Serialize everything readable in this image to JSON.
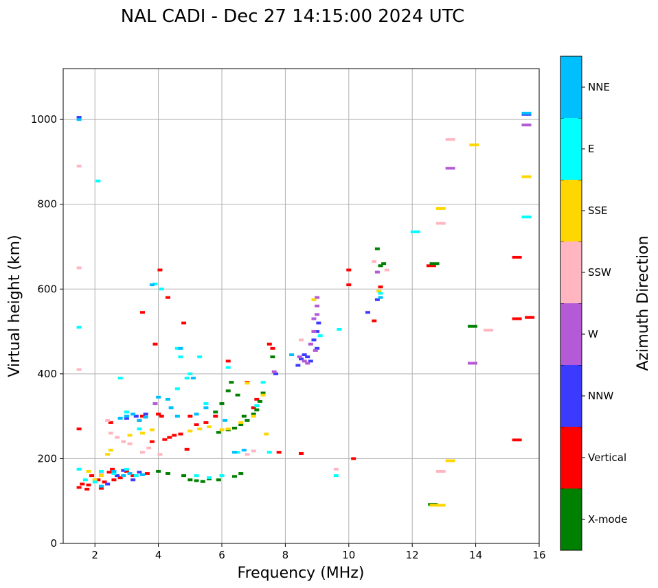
{
  "chart_data": {
    "type": "scatter",
    "title": "NAL CADI - Dec 27 14:15:00 2024 UTC",
    "xlabel": "Frequency (MHz)",
    "ylabel": "Virtual height (km)",
    "xlim": [
      1,
      16
    ],
    "ylim": [
      0,
      1120
    ],
    "xticks": [
      2,
      4,
      6,
      8,
      10,
      12,
      14,
      16
    ],
    "yticks": [
      0,
      200,
      400,
      600,
      800,
      1000
    ],
    "grid": true,
    "colorbar": {
      "label": "Azimuth Direction",
      "categories": [
        {
          "name": "X-mode",
          "color": "#008000"
        },
        {
          "name": "Vertical",
          "color": "#ff0000"
        },
        {
          "name": "NNW",
          "color": "#3b3bff"
        },
        {
          "name": "W",
          "color": "#b45ad6"
        },
        {
          "name": "SSW",
          "color": "#ffb6c1"
        },
        {
          "name": "SSE",
          "color": "#ffd700"
        },
        {
          "name": "E",
          "color": "#00ffff"
        },
        {
          "name": "NNE",
          "color": "#00bfff"
        }
      ]
    },
    "series": [
      {
        "name": "Vertical",
        "points": [
          [
            1.5,
            132
          ],
          [
            1.6,
            140
          ],
          [
            1.75,
            128
          ],
          [
            1.9,
            160
          ],
          [
            2.1,
            150
          ],
          [
            2.3,
            145
          ],
          [
            2.45,
            168
          ],
          [
            2.5,
            285
          ],
          [
            2.6,
            150
          ],
          [
            2.8,
            155
          ],
          [
            3.0,
            170
          ],
          [
            3.2,
            160
          ],
          [
            3.5,
            300
          ],
          [
            3.65,
            165
          ],
          [
            3.8,
            240
          ],
          [
            4.0,
            305
          ],
          [
            4.1,
            300
          ],
          [
            4.2,
            245
          ],
          [
            4.35,
            250
          ],
          [
            4.5,
            255
          ],
          [
            4.7,
            258
          ],
          [
            4.8,
            520
          ],
          [
            4.9,
            222
          ],
          [
            5.0,
            300
          ],
          [
            5.2,
            280
          ],
          [
            5.5,
            285
          ],
          [
            5.8,
            300
          ],
          [
            6.2,
            430
          ],
          [
            6.8,
            380
          ],
          [
            7.0,
            320
          ],
          [
            7.5,
            470
          ],
          [
            7.6,
            460
          ],
          [
            7.8,
            215
          ],
          [
            8.5,
            212
          ],
          [
            10.0,
            645
          ],
          [
            10.0,
            610
          ],
          [
            10.15,
            200
          ],
          [
            10.8,
            525
          ],
          [
            11.0,
            605
          ],
          [
            12.6,
            655
          ],
          [
            3.5,
            545
          ],
          [
            3.9,
            470
          ],
          [
            4.05,
            645
          ],
          [
            4.3,
            580
          ],
          [
            1.5,
            270
          ],
          [
            15.3,
            675
          ],
          [
            15.3,
            530
          ],
          [
            15.7,
            533
          ],
          [
            15.3,
            244
          ],
          [
            2.2,
            130
          ],
          [
            2.55,
            175
          ],
          [
            3.4,
            290
          ],
          [
            1.8,
            138
          ],
          [
            7.1,
            340
          ]
        ]
      },
      {
        "name": "X-mode",
        "points": [
          [
            4.8,
            160
          ],
          [
            5.0,
            150
          ],
          [
            5.2,
            148
          ],
          [
            5.4,
            146
          ],
          [
            5.6,
            152
          ],
          [
            5.9,
            150
          ],
          [
            6.4,
            158
          ],
          [
            6.6,
            165
          ],
          [
            6.2,
            268
          ],
          [
            6.4,
            272
          ],
          [
            6.6,
            280
          ],
          [
            6.8,
            290
          ],
          [
            7.0,
            305
          ],
          [
            7.1,
            315
          ],
          [
            7.2,
            335
          ],
          [
            7.3,
            355
          ],
          [
            5.8,
            310
          ],
          [
            6.0,
            330
          ],
          [
            6.2,
            360
          ],
          [
            6.3,
            380
          ],
          [
            6.5,
            350
          ],
          [
            4.0,
            170
          ],
          [
            4.3,
            165
          ],
          [
            10.9,
            695
          ],
          [
            11.0,
            655
          ],
          [
            11.1,
            660
          ],
          [
            13.9,
            512
          ],
          [
            12.65,
            92
          ],
          [
            12.7,
            660
          ],
          [
            5.9,
            262
          ],
          [
            6.7,
            300
          ],
          [
            7.6,
            440
          ]
        ]
      },
      {
        "name": "NNW",
        "points": [
          [
            1.5,
            1005
          ],
          [
            3.0,
            295
          ],
          [
            3.3,
            300
          ],
          [
            3.6,
            305
          ],
          [
            2.7,
            160
          ],
          [
            2.9,
            172
          ],
          [
            3.4,
            168
          ],
          [
            8.4,
            420
          ],
          [
            8.5,
            435
          ],
          [
            8.6,
            445
          ],
          [
            8.8,
            430
          ],
          [
            8.9,
            480
          ],
          [
            9.0,
            500
          ],
          [
            9.0,
            460
          ],
          [
            8.7,
            440
          ],
          [
            10.6,
            545
          ],
          [
            10.9,
            575
          ],
          [
            15.6,
            1012
          ],
          [
            2.4,
            140
          ],
          [
            7.7,
            400
          ],
          [
            9.05,
            520
          ],
          [
            3.2,
            150
          ]
        ]
      },
      {
        "name": "W",
        "points": [
          [
            8.45,
            440
          ],
          [
            8.6,
            430
          ],
          [
            8.7,
            425
          ],
          [
            8.9,
            500
          ],
          [
            8.9,
            530
          ],
          [
            9.0,
            580
          ],
          [
            9.0,
            560
          ],
          [
            9.0,
            540
          ],
          [
            8.8,
            470
          ],
          [
            7.65,
            405
          ],
          [
            13.2,
            885
          ],
          [
            13.9,
            425
          ],
          [
            15.6,
            987
          ],
          [
            10.9,
            640
          ],
          [
            3.9,
            330
          ],
          [
            8.95,
            455
          ]
        ]
      },
      {
        "name": "SSW",
        "points": [
          [
            2.4,
            290
          ],
          [
            2.5,
            260
          ],
          [
            2.7,
            250
          ],
          [
            2.9,
            240
          ],
          [
            3.1,
            235
          ],
          [
            3.5,
            215
          ],
          [
            3.7,
            225
          ],
          [
            4.05,
            210
          ],
          [
            2.2,
            165
          ],
          [
            7.0,
            218
          ],
          [
            8.5,
            480
          ],
          [
            10.8,
            665
          ],
          [
            11.2,
            645
          ],
          [
            12.9,
            755
          ],
          [
            12.9,
            170
          ],
          [
            14.4,
            503
          ],
          [
            13.2,
            953
          ],
          [
            9.6,
            175
          ],
          [
            6.8,
            210
          ],
          [
            1.5,
            890
          ],
          [
            1.5,
            650
          ],
          [
            1.5,
            410
          ]
        ]
      },
      {
        "name": "SSE",
        "points": [
          [
            2.0,
            150
          ],
          [
            2.2,
            160
          ],
          [
            2.4,
            210
          ],
          [
            2.5,
            220
          ],
          [
            3.1,
            255
          ],
          [
            3.5,
            260
          ],
          [
            3.8,
            268
          ],
          [
            5.0,
            265
          ],
          [
            5.3,
            270
          ],
          [
            5.6,
            275
          ],
          [
            6.0,
            268
          ],
          [
            6.2,
            270
          ],
          [
            6.6,
            285
          ],
          [
            7.0,
            300
          ],
          [
            7.3,
            350
          ],
          [
            8.9,
            575
          ],
          [
            10.95,
            595
          ],
          [
            12.9,
            790
          ],
          [
            13.95,
            940
          ],
          [
            15.6,
            865
          ],
          [
            13.2,
            195
          ],
          [
            12.7,
            90
          ],
          [
            12.9,
            90
          ],
          [
            7.4,
            258
          ],
          [
            1.8,
            170
          ],
          [
            6.8,
            378
          ]
        ]
      },
      {
        "name": "E",
        "points": [
          [
            1.5,
            175
          ],
          [
            1.7,
            150
          ],
          [
            2.0,
            145
          ],
          [
            2.2,
            170
          ],
          [
            2.6,
            165
          ],
          [
            3.0,
            175
          ],
          [
            3.3,
            160
          ],
          [
            4.6,
            365
          ],
          [
            4.7,
            440
          ],
          [
            5.0,
            400
          ],
          [
            5.3,
            440
          ],
          [
            5.5,
            330
          ],
          [
            5.2,
            160
          ],
          [
            5.6,
            155
          ],
          [
            6.0,
            160
          ],
          [
            6.5,
            215
          ],
          [
            7.1,
            325
          ],
          [
            7.3,
            380
          ],
          [
            9.1,
            490
          ],
          [
            9.6,
            160
          ],
          [
            9.7,
            505
          ],
          [
            11.0,
            590
          ],
          [
            12.1,
            735
          ],
          [
            15.6,
            770
          ],
          [
            3.9,
            612
          ],
          [
            4.1,
            600
          ],
          [
            4.6,
            460
          ],
          [
            4.9,
            390
          ],
          [
            6.2,
            415
          ],
          [
            7.5,
            215
          ],
          [
            2.1,
            855
          ],
          [
            1.5,
            510
          ],
          [
            3.0,
            310
          ],
          [
            3.4,
            270
          ],
          [
            2.8,
            390
          ]
        ]
      },
      {
        "name": "NNE",
        "points": [
          [
            2.8,
            295
          ],
          [
            3.0,
            300
          ],
          [
            3.2,
            305
          ],
          [
            3.4,
            290
          ],
          [
            3.6,
            298
          ],
          [
            2.6,
            170
          ],
          [
            2.9,
            160
          ],
          [
            3.1,
            165
          ],
          [
            3.5,
            162
          ],
          [
            4.0,
            345
          ],
          [
            4.3,
            340
          ],
          [
            4.6,
            300
          ],
          [
            4.4,
            320
          ],
          [
            5.2,
            305
          ],
          [
            5.5,
            320
          ],
          [
            6.4,
            215
          ],
          [
            6.7,
            220
          ],
          [
            8.2,
            445
          ],
          [
            11.0,
            580
          ],
          [
            15.6,
            1015
          ],
          [
            1.5,
            1000
          ],
          [
            4.7,
            460
          ],
          [
            5.1,
            390
          ],
          [
            3.8,
            610
          ],
          [
            6.1,
            290
          ],
          [
            2.2,
            135
          ]
        ]
      }
    ]
  }
}
